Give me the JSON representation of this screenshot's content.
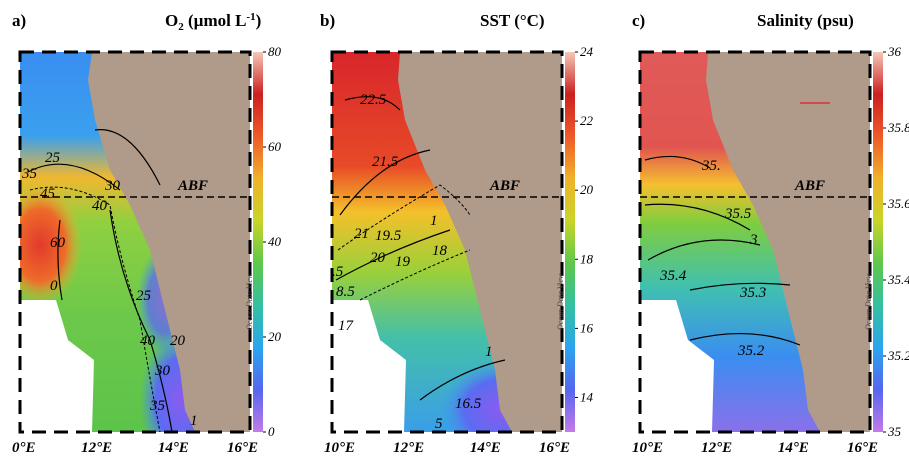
{
  "figure": {
    "credit": "Ocean Data View",
    "front_label": "ABF"
  },
  "chart_data": [
    {
      "type": "heatmap",
      "panel": "a)",
      "title_main": "O",
      "title_sub": "2",
      "title_rest": " (µmol L",
      "title_sup": "-1",
      "title_end": ")",
      "xlabel": "",
      "xticks": [
        "0°E",
        "12°E",
        "14°E",
        "16°E"
      ],
      "colorbar": {
        "min": 0,
        "max": 80,
        "ticks": [
          0,
          20,
          40,
          60,
          80
        ],
        "colors": [
          "#c47be8",
          "#5566ee",
          "#2aa6ee",
          "#35c0a0",
          "#5dc84a",
          "#c8d528",
          "#f0b22a",
          "#ee5a2a",
          "#cc1f20",
          "#f5c8b8"
        ]
      },
      "contour_labels": [
        "25",
        "30",
        "35",
        "45",
        "40",
        "60",
        "0",
        "25",
        "40",
        "20",
        "30",
        "35",
        "1"
      ]
    },
    {
      "type": "heatmap",
      "panel": "b)",
      "title": "SST (°C)",
      "xticks": [
        "10°E",
        "12°E",
        "14°E",
        "16°E"
      ],
      "colorbar": {
        "min": 13,
        "max": 24,
        "ticks": [
          14,
          16,
          18,
          20,
          22,
          24
        ],
        "colors": [
          "#c47be8",
          "#5566ee",
          "#2aa6ee",
          "#35c0a0",
          "#5dc84a",
          "#c8d528",
          "#f0b22a",
          "#ee5a2a",
          "#cc1f20",
          "#f5c8b8"
        ]
      },
      "contour_labels": [
        "22.5",
        "21.5",
        "21",
        "19.5",
        "1",
        "19",
        "18",
        ".5",
        "20",
        "8.5",
        "17",
        "16.5",
        "1",
        "5"
      ]
    },
    {
      "type": "heatmap",
      "panel": "c)",
      "title": "Salinity (psu)",
      "xticks": [
        "10°E",
        "12°E",
        "14°E",
        "16°E"
      ],
      "colorbar": {
        "min": 35,
        "max": 36,
        "ticks": [
          "35",
          "35.2",
          "35.4",
          "35.6",
          "35.8",
          "36"
        ],
        "colors": [
          "#c47be8",
          "#5566ee",
          "#2aa6ee",
          "#35c0a0",
          "#5dc84a",
          "#c8d528",
          "#f0b22a",
          "#ee5a2a",
          "#cc1f20",
          "#f5c8b8"
        ]
      },
      "contour_labels": [
        "35.",
        "35.5",
        "3",
        "35.4",
        "35.3",
        "35.2"
      ]
    }
  ]
}
